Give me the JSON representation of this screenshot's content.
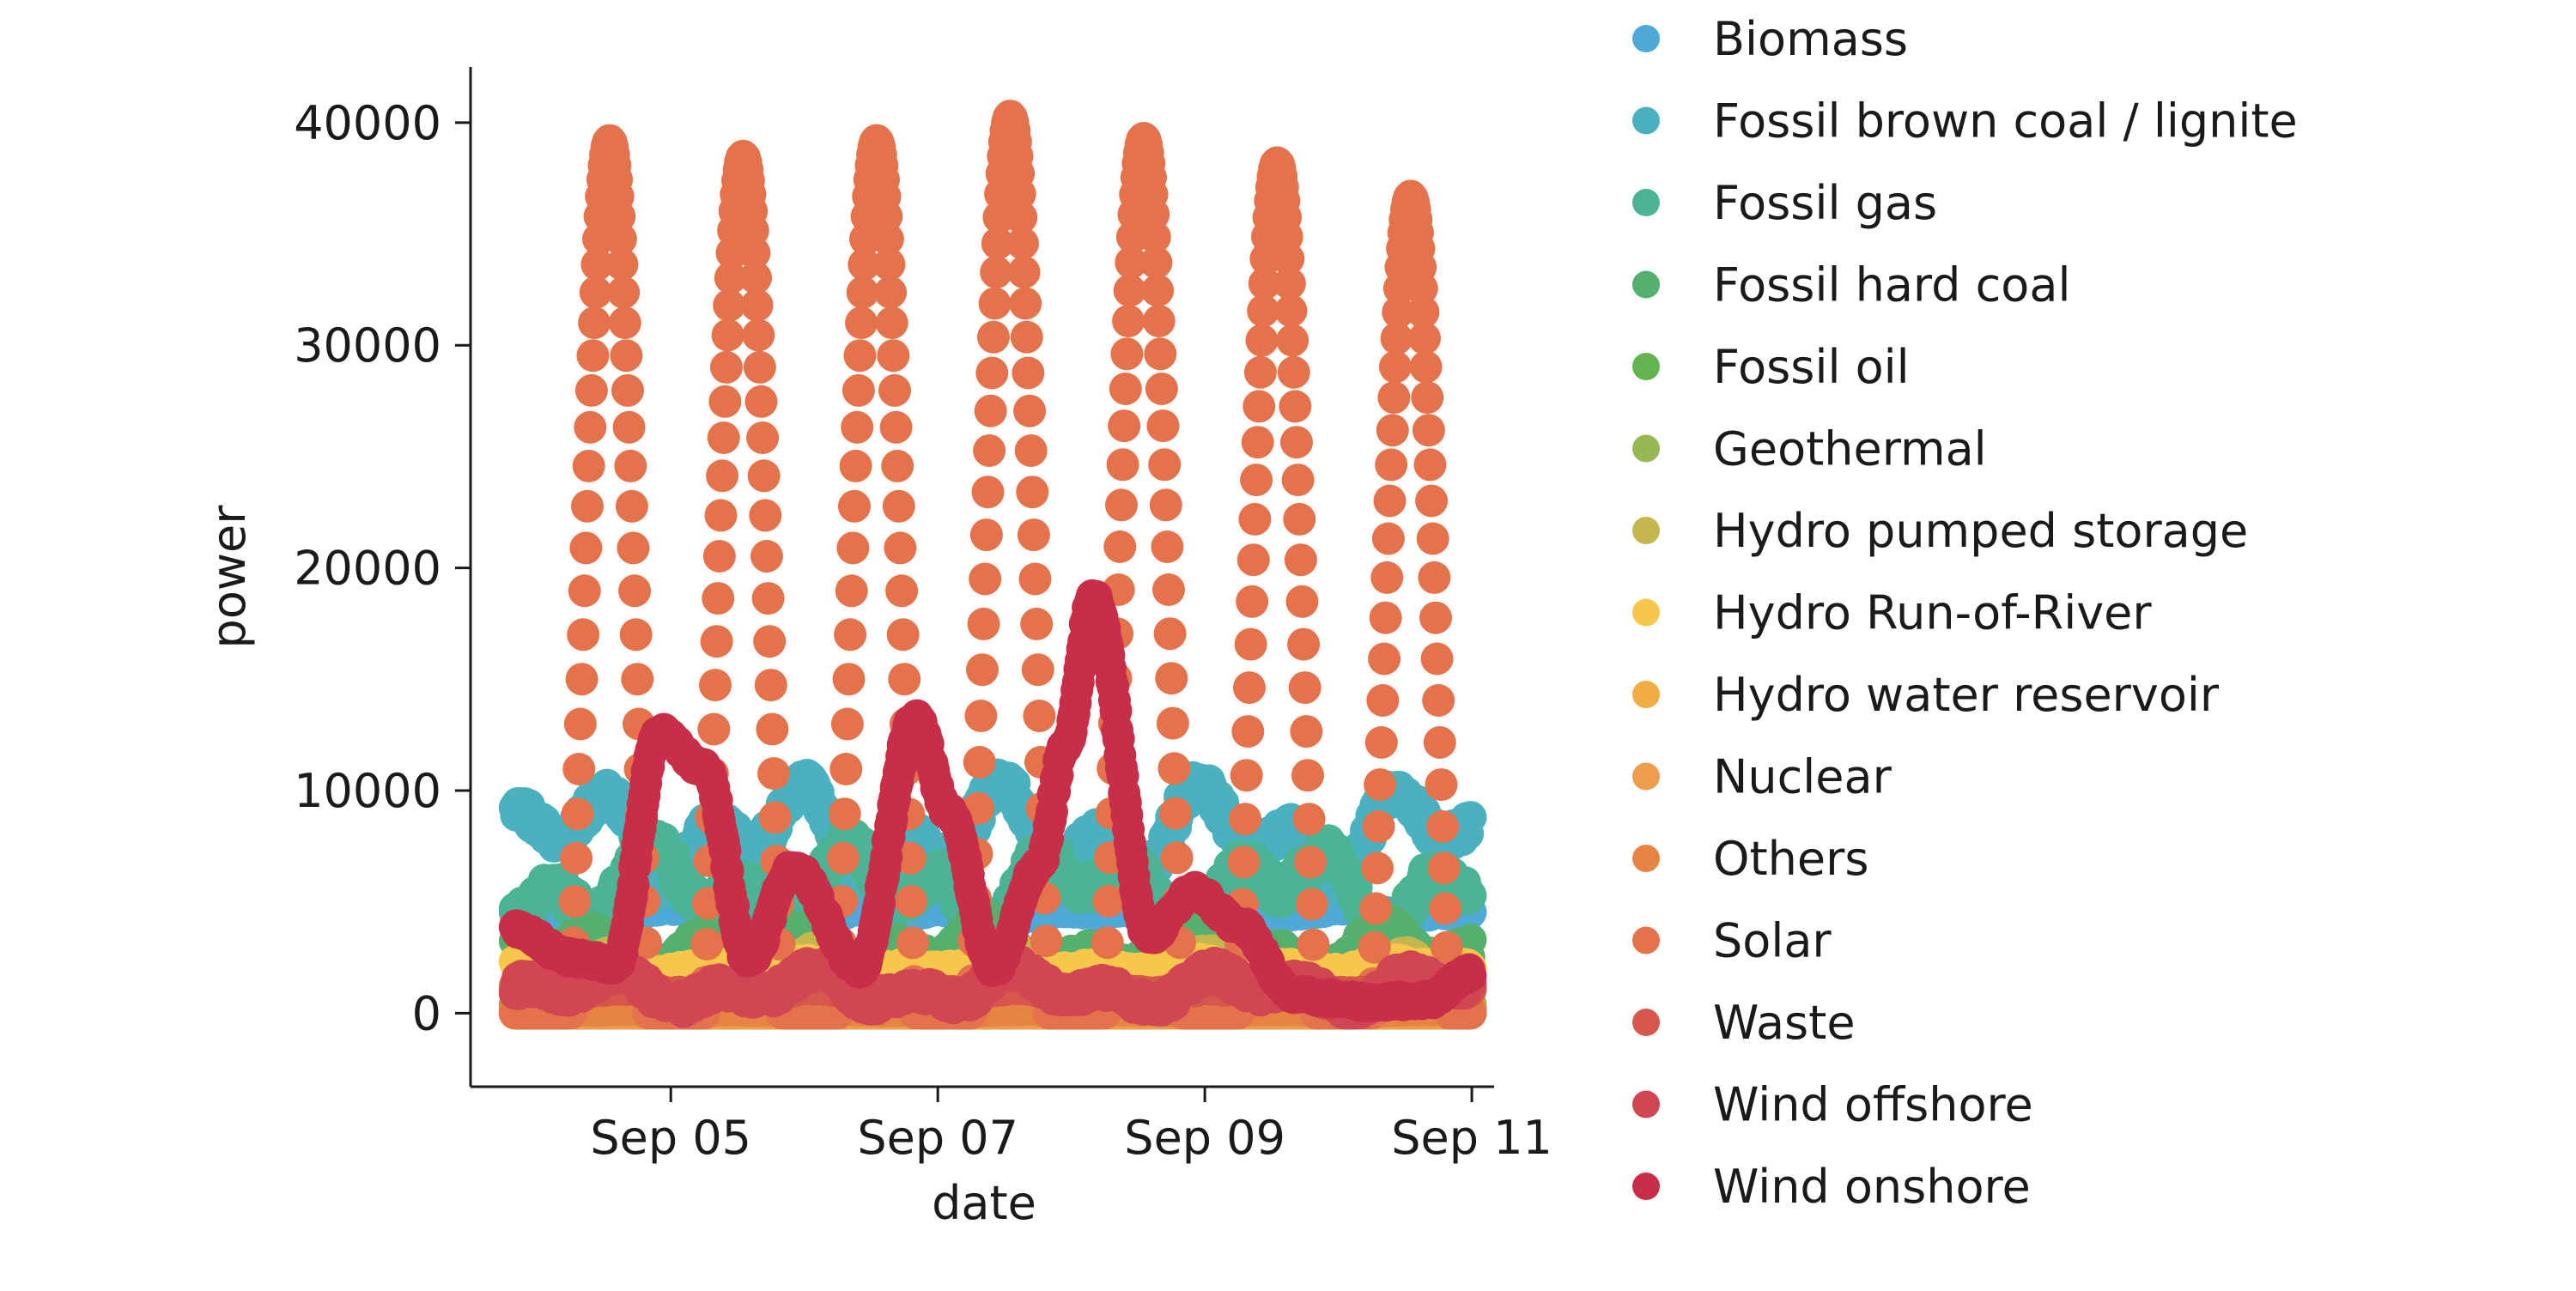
{
  "chart_data": {
    "type": "scatter",
    "title": "",
    "xlabel": "date",
    "ylabel": "power",
    "x_start": "2023-09-03T20:00",
    "x_end": "2023-09-10T23:45",
    "x_interval_minutes": 15,
    "xlim": [
      "2023-09-03T12:00",
      "2023-09-11T04:00"
    ],
    "ylim": [
      -3300,
      42500
    ],
    "x_ticks": [
      {
        "date": "2023-09-05",
        "label": "Sep 05"
      },
      {
        "date": "2023-09-07",
        "label": "Sep 07"
      },
      {
        "date": "2023-09-09",
        "label": "Sep 09"
      },
      {
        "date": "2023-09-11",
        "label": "Sep 11"
      }
    ],
    "y_ticks": [
      {
        "value": 0,
        "label": "0"
      },
      {
        "value": 10000,
        "label": "10000"
      },
      {
        "value": 20000,
        "label": "20000"
      },
      {
        "value": 30000,
        "label": "30000"
      },
      {
        "value": 40000,
        "label": "40000"
      }
    ],
    "grid": false,
    "legend_position": "right, outside plot",
    "series": [
      {
        "name": "Biomass",
        "color": "#4eaad9",
        "base": 4550,
        "amplitude": 250,
        "noise": 120
      },
      {
        "name": "Fossil brown coal / lignite",
        "color": "#4cb1be",
        "base": 8000,
        "amplitude": 2400,
        "noise": 500
      },
      {
        "name": "Fossil gas",
        "color": "#4bb396",
        "base": 5600,
        "amplitude": 2200,
        "noise": 600
      },
      {
        "name": "Fossil hard coal",
        "color": "#55b070",
        "base": 2600,
        "amplitude": 1400,
        "noise": 500
      },
      {
        "name": "Fossil oil",
        "color": "#63b34f",
        "base": 380,
        "amplitude": 80,
        "noise": 40
      },
      {
        "name": "Geothermal",
        "color": "#97b853",
        "base": 25,
        "amplitude": 5,
        "noise": 5
      },
      {
        "name": "Hydro pumped storage",
        "color": "#c4b74e",
        "base": 1300,
        "amplitude": 1300,
        "noise": 500
      },
      {
        "name": "Hydro Run-of-River",
        "color": "#f6c74a",
        "base": 2050,
        "amplitude": 250,
        "noise": 150
      },
      {
        "name": "Hydro water reservoir",
        "color": "#f0ae44",
        "base": 280,
        "amplitude": 180,
        "noise": 80
      },
      {
        "name": "Nuclear",
        "color": "#ee9d4c",
        "base": 0,
        "amplitude": 0,
        "noise": 0
      },
      {
        "name": "Others",
        "color": "#e88443",
        "base": 150,
        "amplitude": 30,
        "noise": 20
      },
      {
        "name": "Solar",
        "color": "#e4724b",
        "daily_peaks": [
          39200,
          38500,
          39200,
          40300,
          39300,
          38200,
          36700
        ],
        "base": 0
      },
      {
        "name": "Waste",
        "color": "#d6574c",
        "base": 1000,
        "amplitude": 150,
        "noise": 80
      },
      {
        "name": "Wind offshore",
        "color": "#d14653",
        "base": 1100,
        "amplitude": 900,
        "noise": 400
      },
      {
        "name": "Wind onshore",
        "color": "#c92e48",
        "keyframes": [
          [
            "2023-09-03T20:00",
            3800
          ],
          [
            "2023-09-04T06:00",
            2500
          ],
          [
            "2023-09-04T14:00",
            2200
          ],
          [
            "2023-09-04T22:00",
            12600
          ],
          [
            "2023-09-05T06:00",
            11000
          ],
          [
            "2023-09-05T14:00",
            2400
          ],
          [
            "2023-09-05T22:00",
            6500
          ],
          [
            "2023-09-06T10:00",
            2000
          ],
          [
            "2023-09-06T20:00",
            13200
          ],
          [
            "2023-09-07T02:00",
            9000
          ],
          [
            "2023-09-07T10:00",
            2000
          ],
          [
            "2023-09-07T18:00",
            6500
          ],
          [
            "2023-09-07T23:00",
            12000
          ],
          [
            "2023-09-08T04:00",
            18700
          ],
          [
            "2023-09-08T14:00",
            3500
          ],
          [
            "2023-09-08T22:00",
            5500
          ],
          [
            "2023-09-09T06:00",
            4000
          ],
          [
            "2023-09-09T16:00",
            800
          ],
          [
            "2023-09-10T06:00",
            500
          ],
          [
            "2023-09-10T16:00",
            600
          ],
          [
            "2023-09-10T23:45",
            1800
          ]
        ]
      }
    ]
  }
}
